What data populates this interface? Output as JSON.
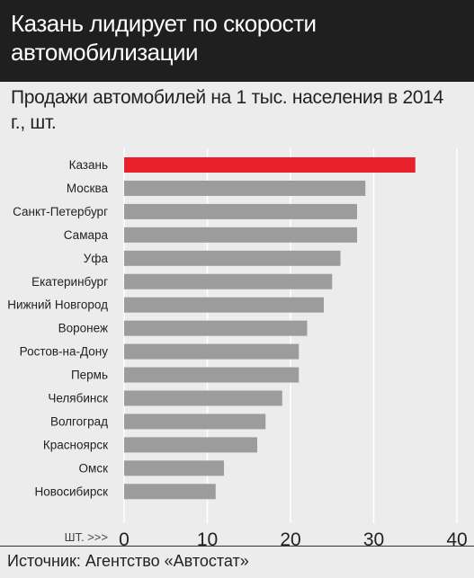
{
  "title": "Казань лидирует по скорости автомобилизации",
  "subtitle": "Продажи автомобилей на 1 тыс. населения в 2014 г., шт.",
  "source": "Источник: Агентство «Автостат»",
  "chart_data": {
    "type": "bar",
    "orientation": "horizontal",
    "categories": [
      "Казань",
      "Москва",
      "Санкт-Петербург",
      "Самара",
      "Уфа",
      "Екатеринбург",
      "Нижний Новгород",
      "Воронеж",
      "Ростов-на-Дону",
      "Пермь",
      "Челябинск",
      "Волгоград",
      "Красноярск",
      "Омск",
      "Новосибирск"
    ],
    "values": [
      35,
      29,
      28,
      28,
      26,
      25,
      24,
      22,
      21,
      21,
      19,
      17,
      16,
      12,
      11
    ],
    "highlight_index": 0,
    "xlim": [
      0,
      40
    ],
    "xticks": [
      0,
      10,
      20,
      30,
      40
    ],
    "xunit_label": "ШТ. >>>",
    "grid": true,
    "colors": {
      "bar": "#9c9c9c",
      "highlight": "#e8202a",
      "grid": "#ffffff",
      "background": "#ececec",
      "header": "#1f1f1f"
    }
  }
}
